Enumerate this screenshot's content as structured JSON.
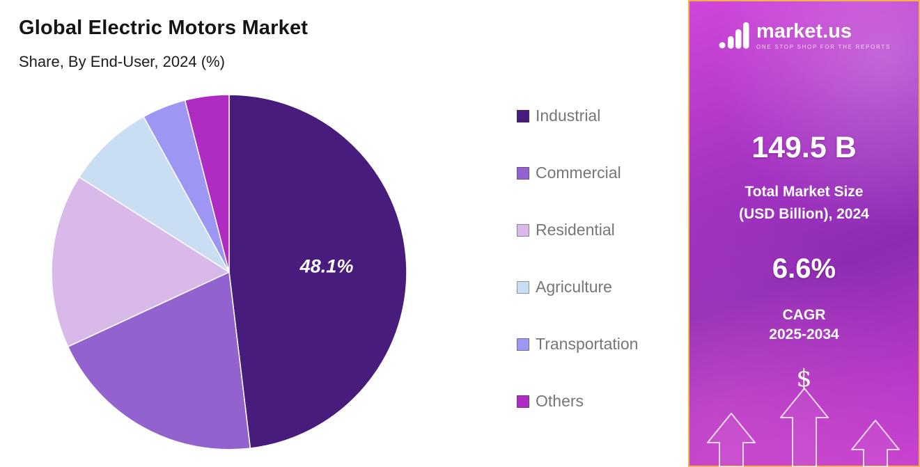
{
  "header": {
    "title": "Global Electric Motors Market",
    "subtitle": "Share, By End-User, 2024 (%)"
  },
  "chart_data": {
    "type": "pie",
    "title": "Global Electric Motors Market",
    "subtitle": "Share, By End-User, 2024 (%)",
    "unit": "%",
    "categories": [
      "Industrial",
      "Commercial",
      "Residential",
      "Agriculture",
      "Transportation",
      "Others"
    ],
    "values": [
      48.1,
      20.0,
      15.9,
      8.0,
      4.0,
      4.0
    ],
    "colors": [
      "#471C7C",
      "#9263CF",
      "#D8B9EA",
      "#C9DEF3",
      "#9D96F2",
      "#AF2CC3"
    ],
    "slice_label": "48.1%",
    "labeled_category": "Industrial",
    "label_color": "#FFFFFF",
    "start_angle_deg": 0,
    "direction": "clockwise",
    "legend_position": "right"
  },
  "legend": {
    "items": [
      {
        "label": "Industrial",
        "color": "#471C7C"
      },
      {
        "label": "Commercial",
        "color": "#9263CF"
      },
      {
        "label": "Residential",
        "color": "#D8B9EA"
      },
      {
        "label": "Agriculture",
        "color": "#C9DEF3"
      },
      {
        "label": "Transportation",
        "color": "#9D96F2"
      },
      {
        "label": "Others",
        "color": "#AF2CC3"
      }
    ]
  },
  "sidebar": {
    "brand": {
      "name": "market.us",
      "tagline": "ONE STOP SHOP FOR THE REPORTS"
    },
    "market_size": {
      "value": "149.5 B",
      "label_line1": "Total Market Size",
      "label_line2": "(USD Billion), 2024"
    },
    "cagr": {
      "value": "6.6%",
      "label_line1": "CAGR",
      "label_line2": "2025-2034"
    },
    "dollar_symbol": "$",
    "accent_border_color": "#F2B24C"
  }
}
